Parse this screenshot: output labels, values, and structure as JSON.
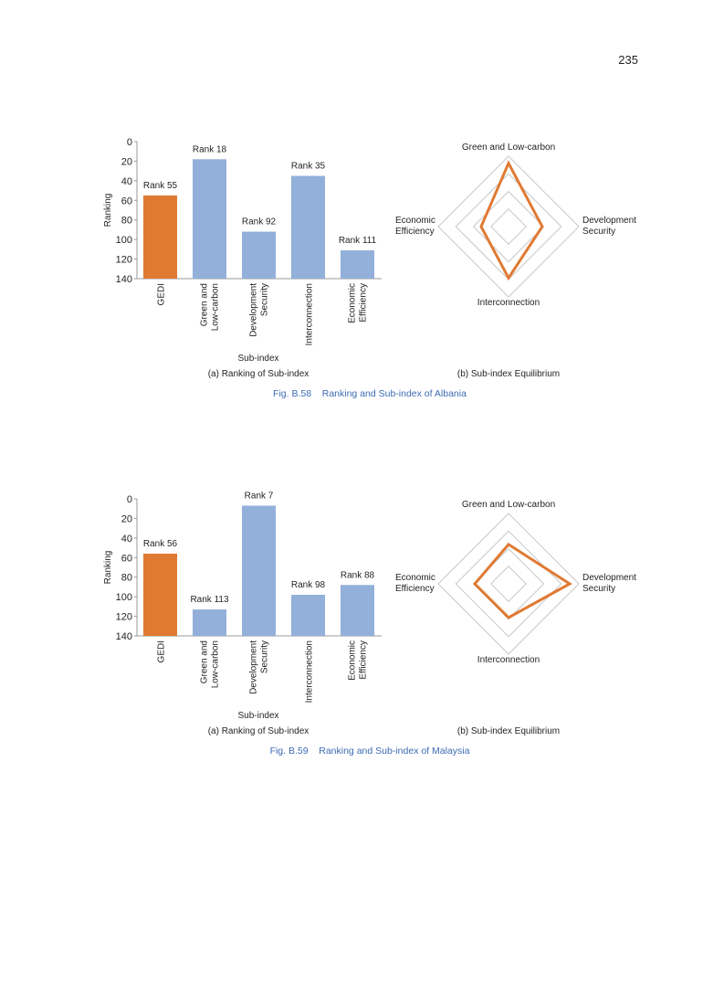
{
  "page_number": "235",
  "colors": {
    "page_number": "#c58a2e",
    "caption": "#3d6bb3",
    "gedi_bar": "#e07a33",
    "subindex_bar": "#92b0d9",
    "radar_line": "#e07a33",
    "radar_grid": "#c8c8c8"
  },
  "chart_data": [
    {
      "type": "bar",
      "title": "(a) Ranking of Sub-index",
      "xlabel": "Sub-index",
      "ylabel": "Ranking",
      "ylim": [
        0,
        140
      ],
      "y_inverted": true,
      "yticks": [
        "0",
        "20",
        "40",
        "60",
        "80",
        "100",
        "120",
        "140"
      ],
      "categories": [
        [
          "GEDI"
        ],
        [
          "Green and",
          "Low-carbon"
        ],
        [
          "Development",
          "Security"
        ],
        [
          "Interconnection"
        ],
        [
          "Economic",
          "Efficiency"
        ]
      ],
      "values": [
        55,
        18,
        92,
        35,
        111
      ],
      "data_labels": [
        "Rank 55",
        "Rank 18",
        "Rank 92",
        "Rank 35",
        "Rank 111"
      ],
      "radar": {
        "type": "radar",
        "title": "(b) Sub-index Equilibrium",
        "axes": [
          [
            "Green and Low-carbon"
          ],
          [
            "Development",
            "Security"
          ],
          [
            "Interconnection"
          ],
          [
            "Economic",
            "Efficiency"
          ]
        ],
        "values": [
          0.9,
          0.48,
          0.73,
          0.39
        ],
        "range": [
          0,
          1
        ]
      },
      "figure_caption": "Fig. B.58    Ranking and Sub-index of Albania"
    },
    {
      "type": "bar",
      "title": "(a) Ranking of Sub-index",
      "xlabel": "Sub-index",
      "ylabel": "Ranking",
      "ylim": [
        0,
        140
      ],
      "y_inverted": true,
      "yticks": [
        "0",
        "20",
        "40",
        "60",
        "80",
        "100",
        "120",
        "140"
      ],
      "categories": [
        [
          "GEDI"
        ],
        [
          "Green and",
          "Low-carbon"
        ],
        [
          "Development",
          "Security"
        ],
        [
          "Interconnection"
        ],
        [
          "Economic",
          "Efficiency"
        ]
      ],
      "values": [
        56,
        113,
        7,
        98,
        88
      ],
      "data_labels": [
        "Rank 56",
        "Rank 113",
        "Rank 7",
        "Rank 98",
        "Rank 88"
      ],
      "radar": {
        "type": "radar",
        "title": "(b) Sub-index Equilibrium",
        "axes": [
          [
            "Green and Low-carbon"
          ],
          [
            "Development",
            "Security"
          ],
          [
            "Interconnection"
          ],
          [
            "Economic",
            "Efficiency"
          ]
        ],
        "values": [
          0.56,
          0.87,
          0.48,
          0.48
        ],
        "range": [
          0,
          1
        ]
      },
      "figure_caption": "Fig. B.59    Ranking and Sub-index of Malaysia"
    }
  ]
}
